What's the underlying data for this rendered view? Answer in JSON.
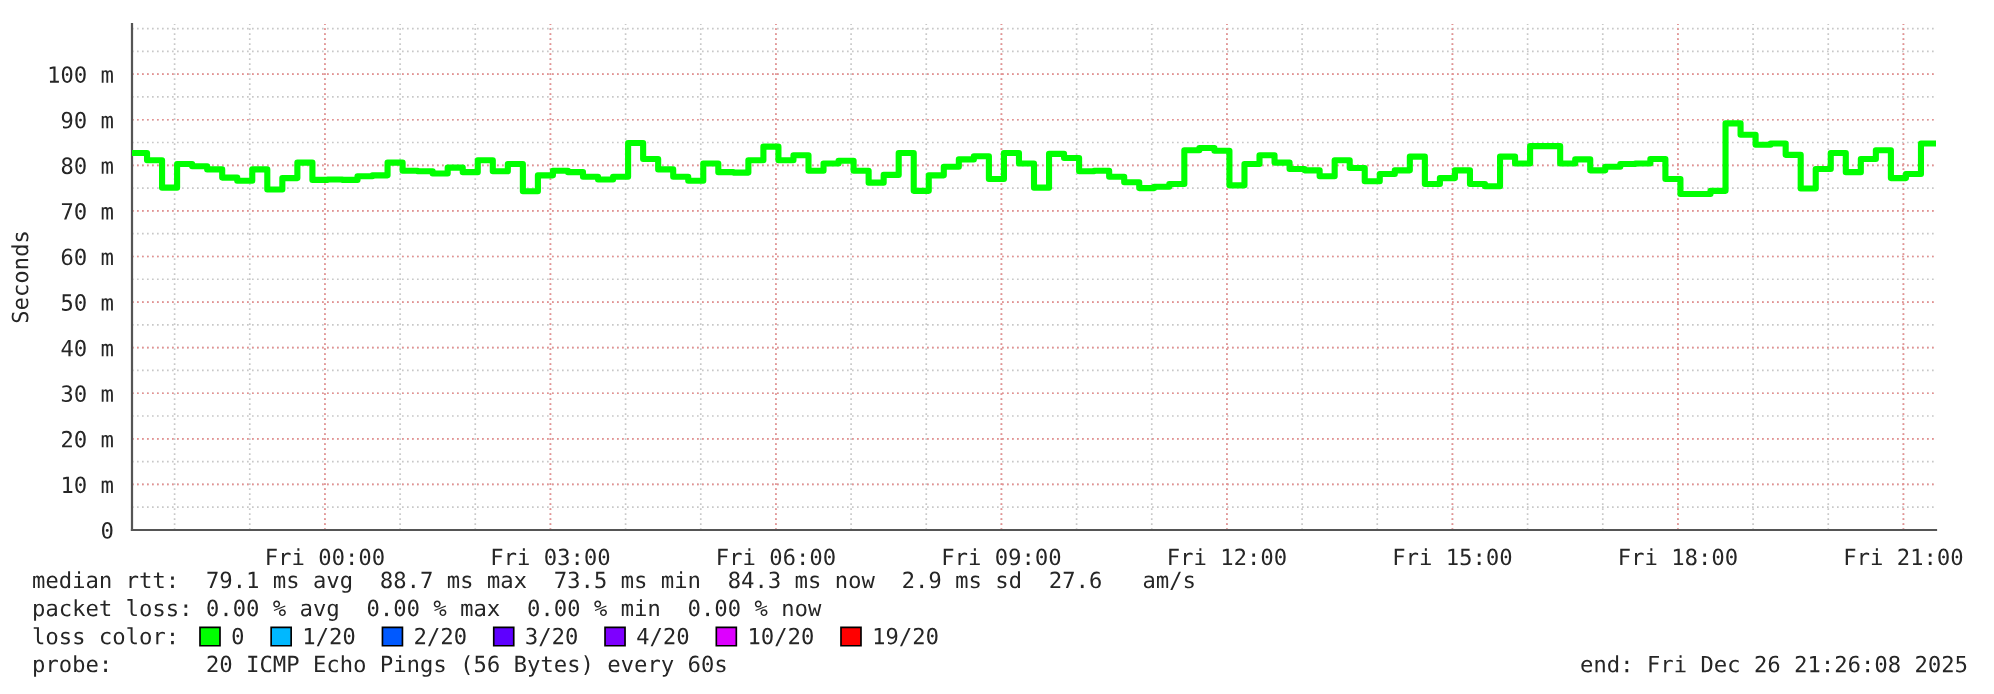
{
  "chart_data": {
    "type": "step",
    "ylabel": "Seconds",
    "xlim": [
      "2025-12-25T21:26",
      "2025-12-26T21:26"
    ],
    "xticks": [
      {
        "value": "2025-12-26T00:00",
        "label": "Fri 00:00"
      },
      {
        "value": "2025-12-26T03:00",
        "label": "Fri 03:00"
      },
      {
        "value": "2025-12-26T06:00",
        "label": "Fri 06:00"
      },
      {
        "value": "2025-12-26T09:00",
        "label": "Fri 09:00"
      },
      {
        "value": "2025-12-26T12:00",
        "label": "Fri 12:00"
      },
      {
        "value": "2025-12-26T15:00",
        "label": "Fri 15:00"
      },
      {
        "value": "2025-12-26T18:00",
        "label": "Fri 18:00"
      },
      {
        "value": "2025-12-26T21:00",
        "label": "Fri 21:00"
      }
    ],
    "ylim": [
      0,
      111
    ],
    "yticks": [
      0,
      {
        "value": 10,
        "label": "10 m"
      },
      {
        "value": 20,
        "label": "20 m"
      },
      {
        "value": 30,
        "label": "30 m"
      },
      {
        "value": 40,
        "label": "40 m"
      },
      {
        "value": 50,
        "label": "50 m"
      },
      {
        "value": 60,
        "label": "60 m"
      },
      {
        "value": 70,
        "label": "70 m"
      },
      {
        "value": 80,
        "label": "80 m"
      },
      {
        "value": 90,
        "label": "90 m"
      },
      {
        "value": 100,
        "label": "100 m"
      }
    ],
    "grid": true,
    "legend": "bottom",
    "legend_title": "loss color:",
    "x": [
      "2025-12-25T21:32",
      "2025-12-25T21:44",
      "2025-12-25T21:56",
      "2025-12-25T22:08",
      "2025-12-25T22:20",
      "2025-12-25T22:32",
      "2025-12-25T22:44",
      "2025-12-25T22:56",
      "2025-12-25T23:08",
      "2025-12-25T23:20",
      "2025-12-25T23:32",
      "2025-12-25T23:44",
      "2025-12-25T23:56",
      "2025-12-26T00:08",
      "2025-12-26T00:20",
      "2025-12-26T00:32",
      "2025-12-26T00:44",
      "2025-12-26T00:56",
      "2025-12-26T01:08",
      "2025-12-26T01:20",
      "2025-12-26T01:32",
      "2025-12-26T01:44",
      "2025-12-26T01:56",
      "2025-12-26T02:08",
      "2025-12-26T02:20",
      "2025-12-26T02:32",
      "2025-12-26T02:44",
      "2025-12-26T02:56",
      "2025-12-26T03:08",
      "2025-12-26T03:20",
      "2025-12-26T03:32",
      "2025-12-26T03:44",
      "2025-12-26T03:56",
      "2025-12-26T04:08",
      "2025-12-26T04:20",
      "2025-12-26T04:32",
      "2025-12-26T04:44",
      "2025-12-26T04:56",
      "2025-12-26T05:08",
      "2025-12-26T05:20",
      "2025-12-26T05:32",
      "2025-12-26T05:44",
      "2025-12-26T05:56",
      "2025-12-26T06:08",
      "2025-12-26T06:20",
      "2025-12-26T06:32",
      "2025-12-26T06:44",
      "2025-12-26T06:56",
      "2025-12-26T07:08",
      "2025-12-26T07:20",
      "2025-12-26T07:32",
      "2025-12-26T07:44",
      "2025-12-26T07:56",
      "2025-12-26T08:08",
      "2025-12-26T08:20",
      "2025-12-26T08:32",
      "2025-12-26T08:44",
      "2025-12-26T08:56",
      "2025-12-26T09:08",
      "2025-12-26T09:20",
      "2025-12-26T09:32",
      "2025-12-26T09:44",
      "2025-12-26T09:56",
      "2025-12-26T10:08",
      "2025-12-26T10:20",
      "2025-12-26T10:32",
      "2025-12-26T10:44",
      "2025-12-26T10:56",
      "2025-12-26T11:08",
      "2025-12-26T11:20",
      "2025-12-26T11:32",
      "2025-12-26T11:44",
      "2025-12-26T11:56",
      "2025-12-26T12:08",
      "2025-12-26T12:20",
      "2025-12-26T12:32",
      "2025-12-26T12:44",
      "2025-12-26T12:56",
      "2025-12-26T13:08",
      "2025-12-26T13:20",
      "2025-12-26T13:32",
      "2025-12-26T13:44",
      "2025-12-26T13:56",
      "2025-12-26T14:08",
      "2025-12-26T14:20",
      "2025-12-26T14:32",
      "2025-12-26T14:44",
      "2025-12-26T14:56",
      "2025-12-26T15:08",
      "2025-12-26T15:20",
      "2025-12-26T15:32",
      "2025-12-26T15:44",
      "2025-12-26T15:56",
      "2025-12-26T16:08",
      "2025-12-26T16:20",
      "2025-12-26T16:32",
      "2025-12-26T16:44",
      "2025-12-26T16:56",
      "2025-12-26T17:08",
      "2025-12-26T17:20",
      "2025-12-26T17:32",
      "2025-12-26T17:44",
      "2025-12-26T17:56",
      "2025-12-26T18:08",
      "2025-12-26T18:20",
      "2025-12-26T18:32",
      "2025-12-26T18:44",
      "2025-12-26T18:56",
      "2025-12-26T19:08",
      "2025-12-26T19:20",
      "2025-12-26T19:32",
      "2025-12-26T19:44",
      "2025-12-26T19:56",
      "2025-12-26T20:08",
      "2025-12-26T20:20",
      "2025-12-26T20:32",
      "2025-12-26T20:44",
      "2025-12-26T20:56",
      "2025-12-26T21:08",
      "2025-12-26T21:20"
    ],
    "series": [
      {
        "name": "0",
        "color": "#00ff00",
        "values": [
          82.7,
          81.1,
          75.1,
          80.3,
          79.8,
          79.1,
          77.3,
          76.6,
          79.1,
          74.7,
          77.2,
          80.6,
          76.8,
          76.9,
          76.8,
          77.6,
          77.8,
          80.6,
          78.8,
          78.7,
          78.2,
          79.5,
          78.5,
          81.1,
          78.7,
          80.3,
          74.3,
          77.8,
          78.8,
          78.5,
          77.5,
          76.9,
          77.5,
          84.9,
          81.4,
          79.1,
          77.5,
          76.6,
          80.4,
          78.5,
          78.4,
          81.1,
          84.1,
          81.1,
          82.2,
          78.8,
          80.4,
          81.0,
          78.8,
          76.2,
          77.9,
          82.7,
          74.4,
          77.8,
          79.7,
          81.3,
          82.0,
          77.0,
          82.7,
          80.4,
          75.1,
          82.5,
          81.6,
          78.7,
          78.8,
          77.5,
          76.3,
          75.0,
          75.3,
          75.9,
          83.3,
          83.8,
          83.2,
          75.6,
          80.3,
          82.2,
          80.6,
          79.2,
          78.9,
          77.6,
          81.1,
          79.4,
          76.5,
          78.1,
          78.9,
          81.9,
          75.9,
          77.2,
          78.9,
          75.9,
          75.4,
          81.9,
          80.4,
          84.2,
          84.2,
          80.4,
          81.3,
          78.9,
          79.7,
          80.3,
          80.4,
          81.4,
          77.0,
          73.7,
          73.7,
          74.4,
          89.2,
          86.7,
          84.5,
          84.8,
          82.3,
          74.9,
          79.2,
          82.7,
          78.5,
          81.4,
          83.3,
          77.2,
          78.1,
          84.8
        ]
      },
      {
        "name": "1/20",
        "color": "#00b8ff",
        "values": [
          null,
          null,
          null,
          null,
          null,
          null,
          null,
          null,
          null,
          null,
          null,
          null,
          null,
          null,
          null,
          null,
          null,
          null,
          null,
          null,
          null,
          null,
          null,
          null,
          null,
          null,
          null,
          null,
          null,
          null,
          null,
          null,
          null,
          null,
          null,
          null,
          null,
          null,
          null,
          null,
          null,
          null,
          null,
          null,
          null,
          null,
          null,
          null,
          null,
          null,
          null,
          null,
          null,
          null,
          null,
          null,
          null,
          null,
          null,
          null,
          null,
          null,
          null,
          null,
          null,
          null,
          null,
          null,
          null,
          null,
          null,
          null,
          null,
          null,
          null,
          null,
          null,
          null,
          null,
          null,
          null,
          null,
          null,
          null,
          null,
          null,
          null,
          null,
          null,
          null,
          null,
          null,
          null,
          null,
          null,
          null,
          null,
          null,
          null,
          null,
          null,
          null,
          null,
          null,
          null,
          null,
          null,
          null,
          null,
          null,
          null,
          null,
          null,
          null,
          null,
          null,
          null,
          null,
          null,
          null
        ]
      },
      {
        "name": "2/20",
        "color": "#0059ff",
        "values": [
          null,
          null,
          null,
          null,
          null,
          null,
          null,
          null,
          null,
          null,
          null,
          null,
          null,
          null,
          null,
          null,
          null,
          null,
          null,
          null,
          null,
          null,
          null,
          null,
          null,
          null,
          null,
          null,
          null,
          null,
          null,
          null,
          null,
          null,
          null,
          null,
          null,
          null,
          null,
          null,
          null,
          null,
          null,
          null,
          null,
          null,
          null,
          null,
          null,
          null,
          null,
          null,
          null,
          null,
          null,
          null,
          null,
          null,
          null,
          null,
          null,
          null,
          null,
          null,
          null,
          null,
          null,
          null,
          null,
          null,
          null,
          null,
          null,
          null,
          null,
          null,
          null,
          null,
          null,
          null,
          null,
          null,
          null,
          null,
          null,
          null,
          null,
          null,
          null,
          null,
          null,
          null,
          null,
          null,
          null,
          null,
          null,
          null,
          null,
          null,
          null,
          null,
          null,
          null,
          null,
          null,
          null,
          null,
          null,
          null,
          null,
          null,
          null,
          null,
          null,
          null,
          null,
          null,
          null,
          null
        ]
      },
      {
        "name": "3/20",
        "color": "#5e00ff",
        "values": [
          null,
          null,
          null,
          null,
          null,
          null,
          null,
          null,
          null,
          null,
          null,
          null,
          null,
          null,
          null,
          null,
          null,
          null,
          null,
          null,
          null,
          null,
          null,
          null,
          null,
          null,
          null,
          null,
          null,
          null,
          null,
          null,
          null,
          null,
          null,
          null,
          null,
          null,
          null,
          null,
          null,
          null,
          null,
          null,
          null,
          null,
          null,
          null,
          null,
          null,
          null,
          null,
          null,
          null,
          null,
          null,
          null,
          null,
          null,
          null,
          null,
          null,
          null,
          null,
          null,
          null,
          null,
          null,
          null,
          null,
          null,
          null,
          null,
          null,
          null,
          null,
          null,
          null,
          null,
          null,
          null,
          null,
          null,
          null,
          null,
          null,
          null,
          null,
          null,
          null,
          null,
          null,
          null,
          null,
          null,
          null,
          null,
          null,
          null,
          null,
          null,
          null,
          null,
          null,
          null,
          null,
          null,
          null,
          null,
          null,
          null,
          null,
          null,
          null,
          null,
          null,
          null,
          null,
          null,
          null
        ]
      },
      {
        "name": "4/20",
        "color": "#7e00ff",
        "values": [
          null,
          null,
          null,
          null,
          null,
          null,
          null,
          null,
          null,
          null,
          null,
          null,
          null,
          null,
          null,
          null,
          null,
          null,
          null,
          null,
          null,
          null,
          null,
          null,
          null,
          null,
          null,
          null,
          null,
          null,
          null,
          null,
          null,
          null,
          null,
          null,
          null,
          null,
          null,
          null,
          null,
          null,
          null,
          null,
          null,
          null,
          null,
          null,
          null,
          null,
          null,
          null,
          null,
          null,
          null,
          null,
          null,
          null,
          null,
          null,
          null,
          null,
          null,
          null,
          null,
          null,
          null,
          null,
          null,
          null,
          null,
          null,
          null,
          null,
          null,
          null,
          null,
          null,
          null,
          null,
          null,
          null,
          null,
          null,
          null,
          null,
          null,
          null,
          null,
          null,
          null,
          null,
          null,
          null,
          null,
          null,
          null,
          null,
          null,
          null,
          null,
          null,
          null,
          null,
          null,
          null,
          null,
          null,
          null,
          null,
          null,
          null,
          null,
          null,
          null,
          null,
          null,
          null,
          null,
          null
        ]
      },
      {
        "name": "10/20",
        "color": "#dd00ff",
        "values": [
          null,
          null,
          null,
          null,
          null,
          null,
          null,
          null,
          null,
          null,
          null,
          null,
          null,
          null,
          null,
          null,
          null,
          null,
          null,
          null,
          null,
          null,
          null,
          null,
          null,
          null,
          null,
          null,
          null,
          null,
          null,
          null,
          null,
          null,
          null,
          null,
          null,
          null,
          null,
          null,
          null,
          null,
          null,
          null,
          null,
          null,
          null,
          null,
          null,
          null,
          null,
          null,
          null,
          null,
          null,
          null,
          null,
          null,
          null,
          null,
          null,
          null,
          null,
          null,
          null,
          null,
          null,
          null,
          null,
          null,
          null,
          null,
          null,
          null,
          null,
          null,
          null,
          null,
          null,
          null,
          null,
          null,
          null,
          null,
          null,
          null,
          null,
          null,
          null,
          null,
          null,
          null,
          null,
          null,
          null,
          null,
          null,
          null,
          null,
          null,
          null,
          null,
          null,
          null,
          null,
          null,
          null,
          null,
          null,
          null,
          null,
          null,
          null,
          null,
          null,
          null,
          null,
          null,
          null,
          null
        ]
      },
      {
        "name": "19/20",
        "color": "#ff0000",
        "values": [
          null,
          null,
          null,
          null,
          null,
          null,
          null,
          null,
          null,
          null,
          null,
          null,
          null,
          null,
          null,
          null,
          null,
          null,
          null,
          null,
          null,
          null,
          null,
          null,
          null,
          null,
          null,
          null,
          null,
          null,
          null,
          null,
          null,
          null,
          null,
          null,
          null,
          null,
          null,
          null,
          null,
          null,
          null,
          null,
          null,
          null,
          null,
          null,
          null,
          null,
          null,
          null,
          null,
          null,
          null,
          null,
          null,
          null,
          null,
          null,
          null,
          null,
          null,
          null,
          null,
          null,
          null,
          null,
          null,
          null,
          null,
          null,
          null,
          null,
          null,
          null,
          null,
          null,
          null,
          null,
          null,
          null,
          null,
          null,
          null,
          null,
          null,
          null,
          null,
          null,
          null,
          null,
          null,
          null,
          null,
          null,
          null,
          null,
          null,
          null,
          null,
          null,
          null,
          null,
          null,
          null,
          null,
          null,
          null,
          null,
          null,
          null,
          null,
          null,
          null,
          null,
          null,
          null,
          null,
          null
        ]
      }
    ],
    "annotations": [
      "median rtt:  79.1 ms avg  88.7 ms max  73.5 ms min  84.3 ms now  2.9 ms sd  27.6   am/s",
      "packet loss: 0.00 % avg  0.00 % max  0.00 % min  0.00 % now",
      "probe:       20 ICMP Echo Pings (56 Bytes) every 60s",
      "end: Fri Dec 26 21:26:08 2025"
    ]
  }
}
